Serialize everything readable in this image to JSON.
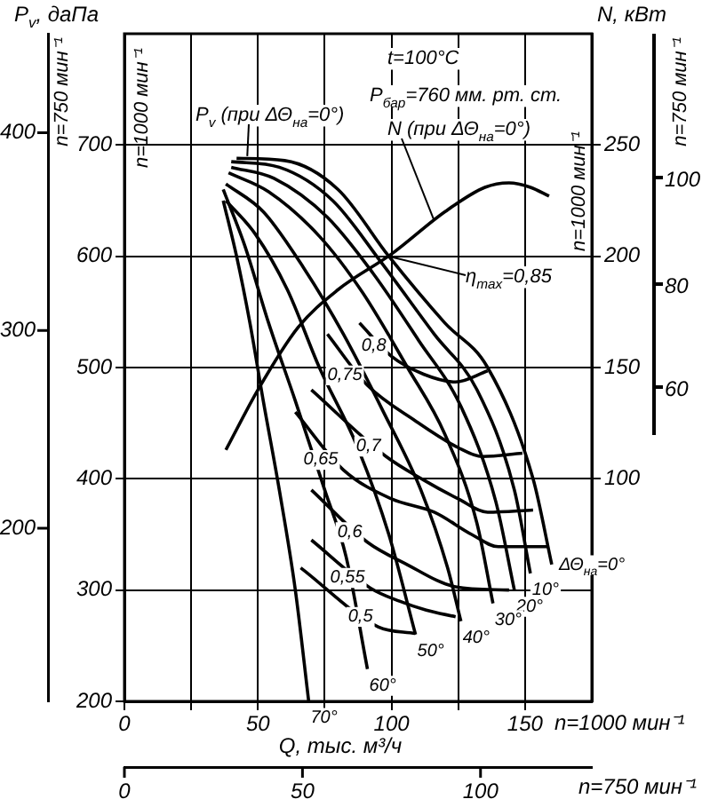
{
  "chart_data": {
    "type": "line",
    "xlabel": "Q, тыс. м³/ч",
    "ylabel": "n=1000 мин⁻¹",
    "y2label": "n=1000 мин⁻¹",
    "y3label": "n=750 мин⁻¹",
    "x2label": "n=750 мин⁻¹",
    "xlim": [
      0,
      175
    ],
    "xticks": [
      0,
      {
        "value": 25,
        "label": null
      },
      50,
      {
        "value": 75,
        "label": null
      },
      100,
      {
        "value": 125,
        "label": null
      },
      150
    ],
    "ylim": [
      200,
      800
    ],
    "yticks": [
      200,
      300,
      400,
      500,
      600,
      700
    ],
    "y2lim": [
      0,
      300
    ],
    "y2ticks": [
      100,
      150,
      200,
      250
    ],
    "y3lim": [
      112.5,
      450
    ],
    "y3ticks": [
      200,
      300,
      400
    ],
    "x2lim": [
      0,
      131.25
    ],
    "x2ticks": [
      0,
      50,
      100
    ],
    "grid": true,
    "legend": false,
    "marker": "none",
    "line_style": "solid",
    "annotations": [
      "P$_{v}$, даПа",
      "N, кВт",
      "n=1000 мин⁻¹",
      "t=100°C",
      "P$_{бар}$=760 мм. рт. ст.",
      {
        "text": "P$_{v}$ (при ΔΘ$_{на}$=0°)",
        "x": 46,
        "y": 690
      },
      {
        "text": "N (при ΔΘ$_{на}$=0°)",
        "x": 116,
        "y": 632
      },
      {
        "text": "η$_{max}$=0,85",
        "x": 99,
        "y": 600
      },
      "100",
      "80",
      "60",
      "n=750 мин⁻¹"
    ],
    "series": [
      {
        "name": "ΔΘ$_{на}$=0°",
        "color": "#000000",
        "x": [
          42,
          60,
          80,
          99,
          120,
          136,
          153,
          160
        ],
        "values": [
          688,
          686,
          660,
          600,
          540,
          500,
          400,
          323
        ]
      },
      {
        "name": "10°",
        "color": "#000000",
        "x": [
          40,
          58,
          78,
          96,
          116,
          132,
          146,
          152
        ],
        "values": [
          685,
          680,
          650,
          595,
          530,
          480,
          390,
          315
        ]
      },
      {
        "name": "20°",
        "color": "#000000",
        "x": [
          40,
          56,
          76,
          93,
          110,
          126,
          139,
          146
        ],
        "values": [
          680,
          670,
          635,
          585,
          525,
          465,
          380,
          300
        ]
      },
      {
        "name": "30°",
        "color": "#000000",
        "x": [
          39,
          54,
          73,
          89,
          106,
          120,
          132,
          138
        ],
        "values": [
          675,
          658,
          618,
          568,
          500,
          440,
          360,
          288
        ]
      },
      {
        "name": "40°",
        "color": "#000000",
        "x": [
          38,
          52,
          67,
          82,
          97,
          111,
          121,
          126
        ],
        "values": [
          665,
          640,
          590,
          530,
          460,
          390,
          320,
          272
        ]
      },
      {
        "name": "50°",
        "color": "#000000",
        "x": [
          38,
          49,
          61,
          73,
          87,
          99,
          109
        ],
        "values": [
          650,
          620,
          570,
          500,
          430,
          350,
          260
        ]
      },
      {
        "name": "60°",
        "color": "#000000",
        "x": [
          37,
          45,
          54,
          64,
          75,
          83,
          91
        ],
        "values": [
          660,
          610,
          540,
          470,
          390,
          330,
          229
        ]
      },
      {
        "name": "70°",
        "color": "#000000",
        "x": [
          37,
          42,
          47,
          52,
          58,
          64,
          69
        ],
        "values": [
          650,
          600,
          540,
          470,
          390,
          300,
          200
        ]
      },
      {
        "name": "0,8",
        "color": "#000000",
        "x": [
          88,
          100,
          112,
          124,
          136
        ],
        "values": [
          540,
          510,
          494,
          487,
          497
        ]
      },
      {
        "name": "0,75",
        "color": "#000000",
        "x": [
          76,
          91,
          109,
          125,
          134,
          149
        ],
        "values": [
          530,
          484,
          452,
          428,
          420,
          423
        ]
      },
      {
        "name": "0,7",
        "color": "#000000",
        "x": [
          70,
          98,
          112,
          125,
          136,
          153
        ],
        "values": [
          480,
          420,
          399,
          382,
          370,
          372
        ]
      },
      {
        "name": "0,65",
        "color": "#000000",
        "x": [
          64,
          82,
          100,
          116,
          130,
          140,
          159
        ],
        "values": [
          460,
          408,
          382,
          370,
          350,
          339,
          339
        ]
      },
      {
        "name": "0,6",
        "color": "#000000",
        "x": [
          70,
          91,
          105,
          124,
          144
        ],
        "values": [
          390,
          343,
          324,
          303,
          300
        ]
      },
      {
        "name": "0,55",
        "color": "#000000",
        "x": [
          70,
          92,
          103,
          113,
          124
        ],
        "values": [
          345,
          302,
          290,
          282,
          276
        ]
      },
      {
        "name": "0,5",
        "color": "#000000",
        "x": [
          66,
          95,
          109
        ],
        "values": [
          320,
          267,
          261
        ]
      },
      {
        "color": "#000000",
        "axis": "y2",
        "x": [
          38,
          50,
          65,
          80,
          100,
          120,
          135,
          144,
          152,
          159
        ],
        "values": [
          113,
          140,
          168,
          185,
          201,
          220,
          231,
          233,
          231,
          227
        ]
      }
    ]
  }
}
